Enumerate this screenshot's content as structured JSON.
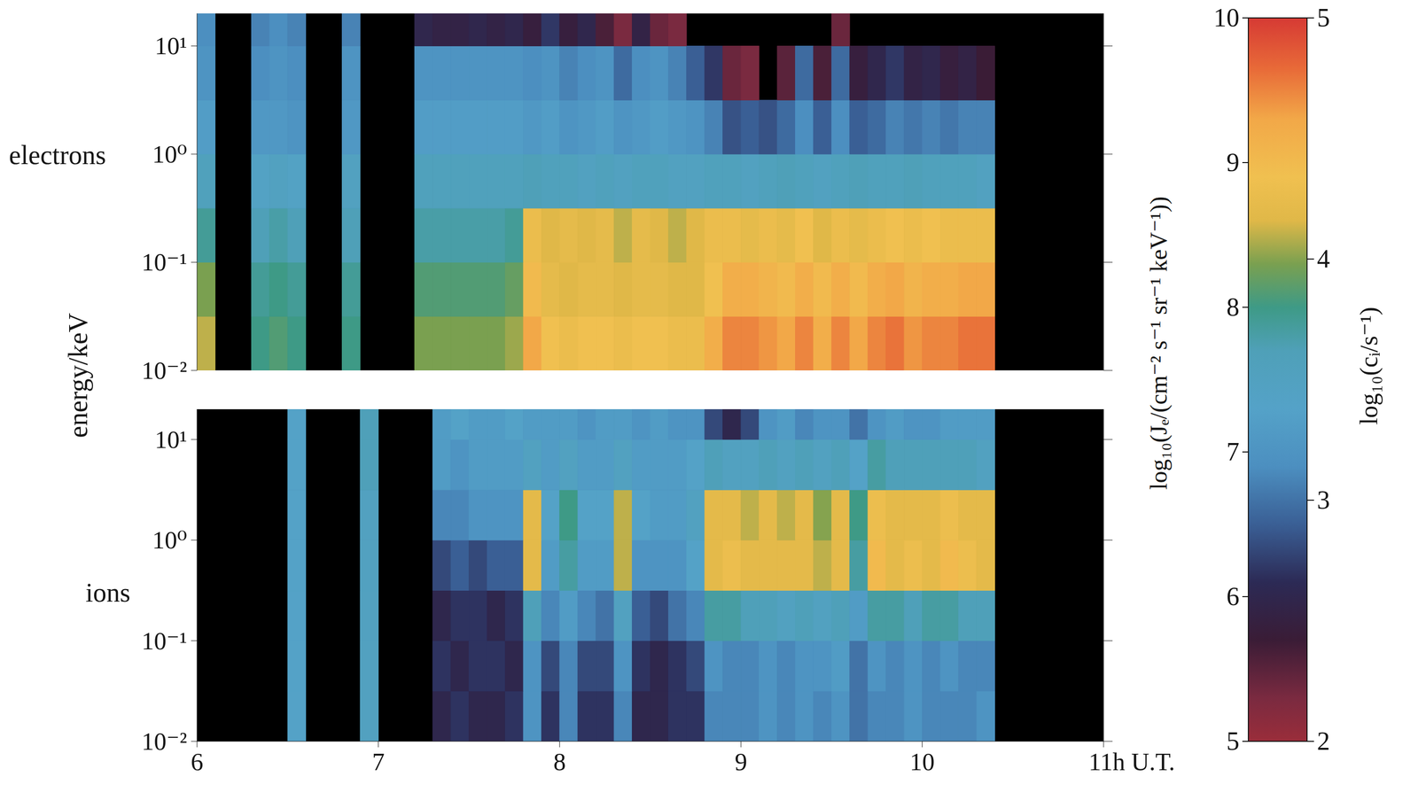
{
  "chart_data": [
    {
      "type": "heatmap",
      "title": "electrons",
      "ylabel": "energy/keV",
      "log": "y",
      "tick_labels": "y",
      "xlim": [
        6,
        11
      ],
      "ylim": [
        0.01,
        20
      ],
      "yticks": [
        {
          "value": 0.01,
          "label": "10⁻²"
        },
        {
          "value": 0.1,
          "label": "10⁻¹"
        },
        {
          "value": 1,
          "label": "10⁰"
        },
        {
          "value": 10,
          "label": "10¹"
        }
      ],
      "time_edges": [
        6.0,
        6.1,
        6.2,
        6.3,
        6.4,
        6.5,
        6.6,
        6.7,
        6.8,
        6.9,
        7.0,
        7.1,
        7.2,
        7.3,
        7.4,
        7.5,
        7.6,
        7.7,
        7.8,
        7.9,
        8.0,
        8.1,
        8.2,
        8.3,
        8.4,
        8.5,
        8.6,
        8.7,
        8.8,
        8.9,
        9.0,
        9.1,
        9.2,
        9.3,
        9.4,
        9.5,
        9.6,
        9.7,
        9.8,
        9.9,
        10.0,
        10.1,
        10.2,
        10.3,
        10.4,
        10.5,
        10.6,
        10.7,
        10.8,
        10.9,
        11.0
      ],
      "energy_edges": [
        0.01,
        0.0316,
        0.1,
        0.316,
        1,
        3.16,
        10,
        20
      ],
      "colorbar": {
        "label": "log₁₀(Jₑ/(cm⁻² s⁻¹ sr⁻¹ keV⁻¹))",
        "range": [
          5,
          10
        ],
        "ticks": [
          5,
          6,
          7,
          8,
          9,
          10
        ]
      },
      "values": [
        [
          8.5,
          null,
          null,
          8.0,
          8.1,
          8.0,
          null,
          null,
          8.0,
          null,
          null,
          null,
          8.3,
          8.3,
          8.3,
          8.3,
          8.3,
          8.4,
          9.3,
          8.9,
          8.8,
          8.9,
          8.9,
          8.8,
          8.9,
          8.9,
          8.8,
          8.8,
          9.2,
          9.5,
          9.5,
          9.4,
          9.3,
          9.5,
          9.2,
          9.5,
          9.3,
          9.5,
          9.6,
          9.4,
          9.5,
          9.5,
          9.6,
          9.6,
          null,
          null,
          null,
          null,
          null,
          null
        ],
        [
          8.3,
          null,
          null,
          7.9,
          8.0,
          7.9,
          null,
          null,
          7.9,
          null,
          null,
          null,
          8.1,
          8.1,
          8.1,
          8.1,
          8.1,
          8.2,
          9.0,
          8.7,
          8.6,
          8.7,
          8.7,
          8.6,
          8.7,
          8.7,
          8.6,
          8.6,
          8.9,
          9.2,
          9.2,
          9.1,
          9.0,
          9.2,
          9.0,
          9.2,
          9.0,
          9.2,
          9.3,
          9.1,
          9.2,
          9.2,
          9.3,
          9.3,
          null,
          null,
          null,
          null,
          null,
          null
        ],
        [
          7.9,
          null,
          null,
          7.7,
          7.8,
          7.7,
          null,
          null,
          7.7,
          null,
          null,
          null,
          7.8,
          7.8,
          7.8,
          7.8,
          7.8,
          7.9,
          8.8,
          8.6,
          8.7,
          8.6,
          8.7,
          8.5,
          8.7,
          8.6,
          8.5,
          8.6,
          8.8,
          8.8,
          8.7,
          8.8,
          8.7,
          8.9,
          8.6,
          8.8,
          8.7,
          8.8,
          8.9,
          8.8,
          8.9,
          8.8,
          8.8,
          8.8,
          null,
          null,
          null,
          null,
          null,
          null
        ],
        [
          7.6,
          null,
          null,
          7.4,
          7.5,
          7.4,
          null,
          null,
          7.5,
          null,
          null,
          null,
          7.6,
          7.6,
          7.6,
          7.6,
          7.6,
          7.6,
          7.7,
          7.6,
          7.6,
          7.5,
          7.6,
          7.5,
          7.6,
          7.6,
          7.5,
          7.5,
          7.6,
          7.6,
          7.5,
          7.6,
          7.7,
          7.6,
          7.5,
          7.6,
          7.7,
          7.6,
          7.6,
          7.7,
          7.6,
          7.6,
          7.6,
          7.5,
          null,
          null,
          null,
          null,
          null,
          null
        ],
        [
          7.2,
          null,
          null,
          7.1,
          7.1,
          7.0,
          null,
          null,
          7.1,
          null,
          null,
          null,
          7.2,
          7.2,
          7.2,
          7.2,
          7.2,
          7.2,
          7.1,
          7.2,
          7.0,
          7.1,
          7.2,
          7.0,
          7.1,
          7.2,
          7.1,
          7.0,
          6.8,
          6.4,
          6.5,
          6.4,
          6.6,
          6.9,
          6.5,
          6.9,
          6.5,
          6.6,
          6.8,
          6.7,
          6.8,
          6.7,
          6.8,
          6.8,
          null,
          null,
          null,
          null,
          null,
          null
        ],
        [
          7.0,
          null,
          null,
          6.9,
          7.0,
          6.9,
          null,
          null,
          7.0,
          null,
          null,
          null,
          7.0,
          7.0,
          7.0,
          7.0,
          7.0,
          7.0,
          6.9,
          7.0,
          6.8,
          6.9,
          7.0,
          6.6,
          6.9,
          7.0,
          6.8,
          6.5,
          6.2,
          5.4,
          5.3,
          null,
          5.5,
          6.6,
          5.6,
          6.6,
          5.8,
          6.0,
          6.2,
          5.9,
          6.0,
          5.8,
          5.9,
          5.7,
          null,
          null,
          null,
          null,
          null,
          null
        ],
        [
          6.9,
          null,
          null,
          6.8,
          6.9,
          6.8,
          null,
          null,
          6.8,
          null,
          null,
          null,
          6.0,
          5.9,
          5.9,
          6.0,
          5.9,
          6.0,
          5.8,
          6.2,
          5.8,
          6.0,
          5.6,
          5.3,
          5.9,
          5.4,
          5.3,
          null,
          null,
          null,
          null,
          null,
          null,
          null,
          null,
          5.4,
          null,
          null,
          null,
          null,
          null,
          null,
          null,
          null,
          null,
          null,
          null,
          null,
          null,
          null
        ]
      ]
    },
    {
      "type": "heatmap",
      "title": "ions",
      "log": "y",
      "xlim": [
        6,
        11
      ],
      "ylim": [
        0.01,
        20
      ],
      "xticks": [
        6,
        7,
        8,
        9,
        10,
        {
          "value": 11,
          "label": "11h U.T."
        }
      ],
      "yticks": [
        {
          "value": 0.01,
          "label": "10⁻²"
        },
        {
          "value": 0.1,
          "label": "10⁻¹"
        },
        {
          "value": 1,
          "label": "10⁰"
        },
        {
          "value": 10,
          "label": "10¹"
        }
      ],
      "time_edges": [
        6.0,
        6.1,
        6.2,
        6.3,
        6.4,
        6.5,
        6.6,
        6.7,
        6.8,
        6.9,
        7.0,
        7.1,
        7.2,
        7.3,
        7.4,
        7.5,
        7.6,
        7.7,
        7.8,
        7.9,
        8.0,
        8.1,
        8.2,
        8.3,
        8.4,
        8.5,
        8.6,
        8.7,
        8.8,
        8.9,
        9.0,
        9.1,
        9.2,
        9.3,
        9.4,
        9.5,
        9.6,
        9.7,
        9.8,
        9.9,
        10.0,
        10.1,
        10.2,
        10.3,
        10.4,
        10.5,
        10.6,
        10.7,
        10.8,
        10.9,
        11.0
      ],
      "energy_edges": [
        0.01,
        0.0316,
        0.1,
        0.316,
        1,
        3.16,
        10,
        20
      ],
      "colorbar": {
        "label": "log₁₀(cᵢ/s⁻¹)",
        "range": [
          2,
          5
        ],
        "ticks": [
          2,
          3,
          4,
          5
        ]
      },
      "values": [
        [
          null,
          null,
          null,
          null,
          null,
          3.4,
          null,
          null,
          null,
          3.5,
          null,
          null,
          null,
          2.6,
          2.7,
          2.6,
          2.6,
          2.7,
          3.2,
          2.7,
          3.1,
          2.7,
          2.7,
          3.1,
          2.6,
          2.6,
          2.7,
          2.7,
          3.1,
          3.1,
          3.1,
          3.2,
          3.1,
          3.2,
          3.1,
          3.2,
          3.0,
          3.1,
          3.1,
          3.2,
          3.1,
          3.1,
          3.1,
          3.2,
          null,
          null,
          null,
          null,
          null,
          null
        ],
        [
          null,
          null,
          null,
          null,
          null,
          3.4,
          null,
          null,
          null,
          3.5,
          null,
          null,
          null,
          2.7,
          2.6,
          2.7,
          2.7,
          2.6,
          3.2,
          2.8,
          3.1,
          2.8,
          2.8,
          3.2,
          2.7,
          2.6,
          2.7,
          2.8,
          3.2,
          3.1,
          3.1,
          3.2,
          3.1,
          3.2,
          3.2,
          3.3,
          3.0,
          3.2,
          3.1,
          3.2,
          3.1,
          3.2,
          3.1,
          3.1,
          null,
          null,
          null,
          null,
          null,
          null
        ],
        [
          null,
          null,
          null,
          null,
          null,
          3.4,
          null,
          null,
          null,
          3.5,
          null,
          null,
          null,
          2.6,
          2.7,
          2.7,
          2.6,
          2.7,
          3.6,
          3.1,
          3.3,
          3.1,
          3.0,
          3.5,
          2.9,
          2.8,
          3.0,
          3.1,
          3.7,
          3.7,
          3.6,
          3.6,
          3.5,
          3.6,
          3.5,
          3.6,
          3.3,
          3.7,
          3.7,
          3.6,
          3.7,
          3.7,
          3.6,
          3.6,
          null,
          null,
          null,
          null,
          null,
          null
        ],
        [
          null,
          null,
          null,
          null,
          null,
          3.4,
          null,
          null,
          null,
          3.5,
          null,
          null,
          null,
          2.8,
          2.9,
          2.8,
          2.9,
          2.9,
          4.2,
          3.3,
          3.7,
          3.3,
          3.3,
          4.1,
          3.2,
          3.2,
          3.2,
          3.4,
          4.2,
          4.3,
          4.2,
          4.2,
          4.2,
          4.2,
          4.1,
          4.2,
          3.7,
          4.4,
          4.2,
          4.3,
          4.2,
          4.4,
          4.3,
          4.2,
          null,
          null,
          null,
          null,
          null,
          null
        ],
        [
          null,
          null,
          null,
          null,
          null,
          3.4,
          null,
          null,
          null,
          3.5,
          null,
          null,
          null,
          3.1,
          3.1,
          3.2,
          3.2,
          3.2,
          4.2,
          3.4,
          3.8,
          3.4,
          3.4,
          4.1,
          3.4,
          3.3,
          3.3,
          3.5,
          4.2,
          4.2,
          4.1,
          4.2,
          4.1,
          4.2,
          4.0,
          4.2,
          3.8,
          4.3,
          4.2,
          4.2,
          4.2,
          4.3,
          4.2,
          4.2,
          null,
          null,
          null,
          null,
          null,
          null
        ],
        [
          null,
          null,
          null,
          null,
          null,
          3.4,
          null,
          null,
          null,
          3.6,
          null,
          null,
          null,
          3.3,
          3.2,
          3.3,
          3.3,
          3.3,
          3.5,
          3.3,
          3.5,
          3.3,
          3.3,
          3.5,
          3.3,
          3.3,
          3.3,
          3.4,
          3.6,
          3.5,
          3.5,
          3.6,
          3.5,
          3.6,
          3.5,
          3.6,
          3.4,
          3.7,
          3.6,
          3.6,
          3.6,
          3.6,
          3.6,
          3.5,
          null,
          null,
          null,
          null,
          null,
          null
        ],
        [
          null,
          null,
          null,
          null,
          null,
          3.4,
          null,
          null,
          null,
          3.6,
          null,
          null,
          null,
          3.3,
          3.4,
          3.3,
          3.3,
          3.4,
          3.3,
          3.3,
          3.3,
          3.2,
          3.3,
          3.3,
          3.2,
          3.3,
          3.2,
          3.2,
          2.8,
          2.6,
          2.8,
          3.2,
          3.3,
          3.1,
          3.2,
          3.2,
          3.0,
          3.2,
          3.3,
          3.2,
          3.2,
          3.3,
          3.3,
          3.3,
          null,
          null,
          null,
          null,
          null,
          null
        ]
      ]
    }
  ]
}
